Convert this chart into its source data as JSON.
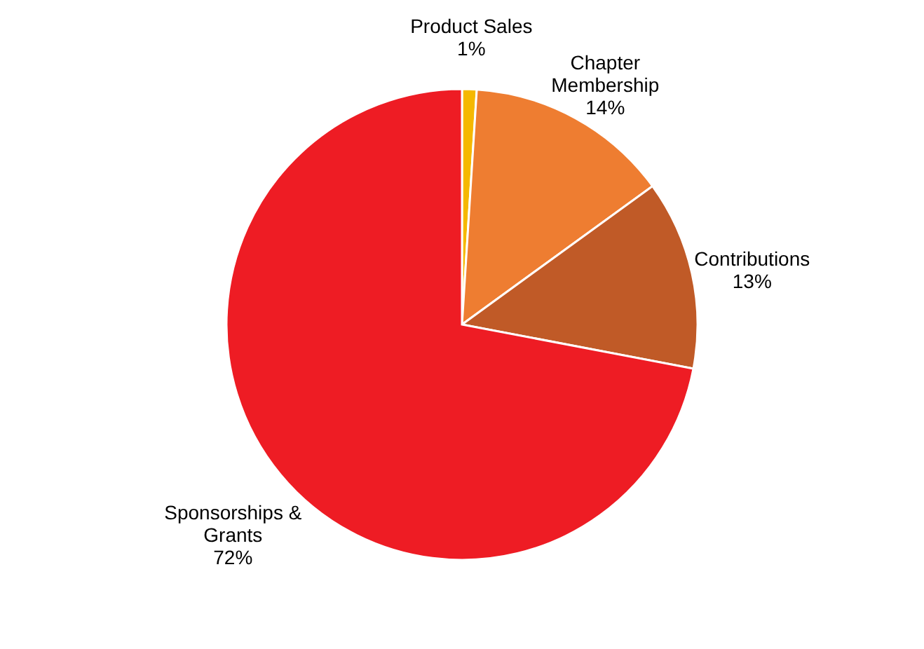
{
  "chart_data": {
    "type": "pie",
    "categories": [
      "Product Sales",
      "Chapter Membership",
      "Contributions",
      "Sponsorships & Grants"
    ],
    "values": [
      1,
      14,
      13,
      72
    ],
    "value_labels": [
      "1%",
      "14%",
      "13%",
      "72%"
    ],
    "colors": [
      "#f5b800",
      "#ee7d31",
      "#c05a27",
      "#ee1c24"
    ]
  }
}
